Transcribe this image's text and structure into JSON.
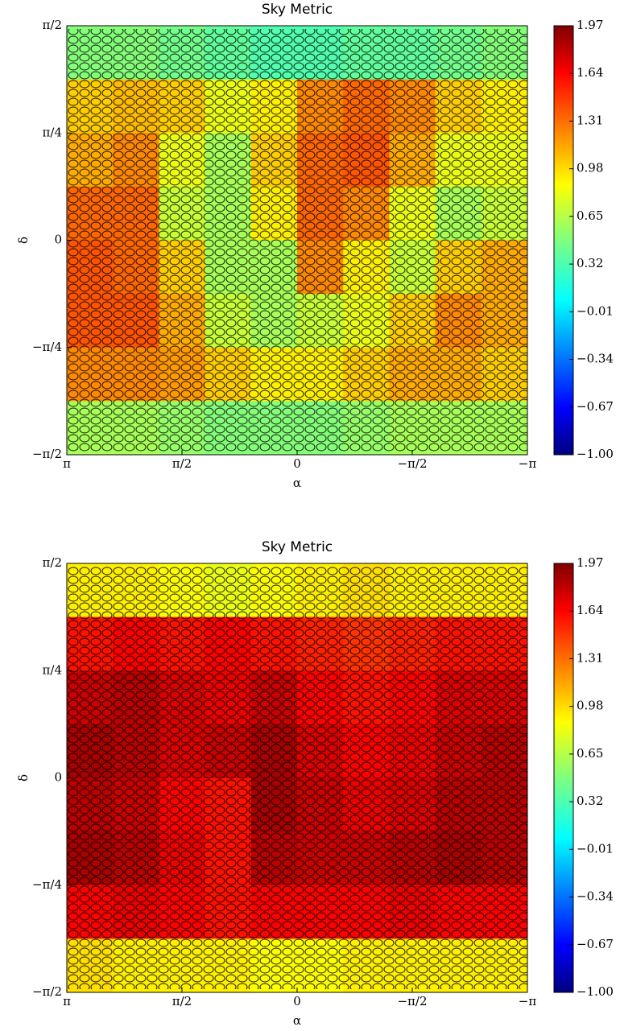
{
  "chart_data": [
    {
      "type": "heatmap",
      "title": "Sky Metric",
      "xlabel": "α",
      "ylabel": "δ",
      "xlim": [
        3.14159265,
        -3.14159265
      ],
      "xticks": [
        {
          "value": 3.14159265,
          "label": "π"
        },
        {
          "value": 1.57079633,
          "label": "π/2"
        },
        0,
        {
          "value": -1.57079633,
          "label": "−π/2"
        },
        {
          "value": -3.14159265,
          "label": "−π"
        }
      ],
      "ylim": [
        -1.57079633,
        1.57079633
      ],
      "yticks": [
        {
          "value": 1.57079633,
          "label": "π/2"
        },
        {
          "value": 0.78539816,
          "label": "π/4"
        },
        0,
        {
          "value": -0.78539816,
          "label": "−π/4"
        },
        {
          "value": -1.57079633,
          "label": "−π/2"
        }
      ],
      "colormap": "jet",
      "clim": [
        -1.0,
        1.97
      ],
      "cticks": [
        1.97,
        1.64,
        1.31,
        0.98,
        0.65,
        0.32,
        {
          "value": -0.01,
          "label": "−0.01"
        },
        {
          "value": -0.34,
          "label": "−0.34"
        },
        {
          "value": -0.67,
          "label": "−0.67"
        },
        {
          "value": -1.0,
          "label": "−1.00"
        }
      ],
      "z": [
        [
          0.5,
          0.5,
          0.45,
          0.4,
          0.35,
          0.35,
          0.4,
          0.4,
          0.45,
          0.5
        ],
        [
          1.0,
          1.05,
          1.0,
          0.8,
          0.9,
          1.2,
          1.3,
          1.2,
          1.0,
          0.9
        ],
        [
          1.1,
          1.2,
          0.8,
          0.6,
          1.0,
          1.3,
          1.35,
          1.1,
          0.8,
          0.8
        ],
        [
          1.3,
          1.3,
          0.7,
          0.6,
          0.9,
          1.3,
          1.2,
          0.8,
          0.6,
          0.7
        ],
        [
          1.35,
          1.3,
          1.0,
          0.6,
          0.6,
          1.2,
          0.9,
          0.7,
          1.0,
          1.1
        ],
        [
          1.35,
          1.35,
          1.1,
          0.7,
          0.6,
          0.7,
          0.8,
          1.0,
          1.2,
          1.1
        ],
        [
          1.2,
          1.2,
          1.15,
          1.0,
          0.9,
          0.9,
          1.0,
          1.1,
          1.1,
          1.0
        ],
        [
          0.6,
          0.6,
          0.55,
          0.5,
          0.5,
          0.5,
          0.55,
          0.6,
          0.6,
          0.6
        ]
      ]
    },
    {
      "type": "heatmap",
      "title": "Sky Metric",
      "xlabel": "α",
      "ylabel": "δ",
      "xlim": [
        3.14159265,
        -3.14159265
      ],
      "xticks": [
        {
          "value": 3.14159265,
          "label": "π"
        },
        {
          "value": 1.57079633,
          "label": "π/2"
        },
        0,
        {
          "value": -1.57079633,
          "label": "−π/2"
        },
        {
          "value": -3.14159265,
          "label": "−π"
        }
      ],
      "ylim": [
        -1.57079633,
        1.57079633
      ],
      "yticks": [
        {
          "value": 1.57079633,
          "label": "π/2"
        },
        {
          "value": 0.78539816,
          "label": "π/4"
        },
        0,
        {
          "value": -0.78539816,
          "label": "−π/4"
        },
        {
          "value": -1.57079633,
          "label": "−π/2"
        }
      ],
      "colormap": "jet",
      "clim": [
        -1.0,
        1.97
      ],
      "cticks": [
        1.97,
        1.64,
        1.31,
        0.98,
        0.65,
        0.32,
        {
          "value": -0.01,
          "label": "−0.01"
        },
        {
          "value": -0.34,
          "label": "−0.34"
        },
        {
          "value": -0.67,
          "label": "−0.67"
        },
        {
          "value": -1.0,
          "label": "−1.00"
        }
      ],
      "z": [
        [
          0.9,
          0.9,
          0.85,
          0.8,
          0.85,
          0.9,
          0.95,
          0.9,
          0.9,
          0.9
        ],
        [
          1.55,
          1.6,
          1.55,
          1.6,
          1.55,
          1.5,
          1.45,
          1.5,
          1.55,
          1.55
        ],
        [
          1.75,
          1.8,
          1.7,
          1.65,
          1.75,
          1.6,
          1.55,
          1.6,
          1.7,
          1.7
        ],
        [
          1.85,
          1.8,
          1.7,
          1.75,
          1.85,
          1.7,
          1.6,
          1.65,
          1.75,
          1.8
        ],
        [
          1.8,
          1.75,
          1.6,
          1.55,
          1.85,
          1.75,
          1.65,
          1.7,
          1.8,
          1.8
        ],
        [
          1.85,
          1.8,
          1.65,
          1.55,
          1.8,
          1.75,
          1.75,
          1.8,
          1.85,
          1.8
        ],
        [
          1.6,
          1.65,
          1.6,
          1.55,
          1.6,
          1.6,
          1.6,
          1.65,
          1.6,
          1.6
        ],
        [
          0.95,
          0.9,
          0.9,
          0.9,
          0.85,
          0.85,
          0.9,
          0.9,
          0.9,
          0.9
        ]
      ]
    }
  ]
}
